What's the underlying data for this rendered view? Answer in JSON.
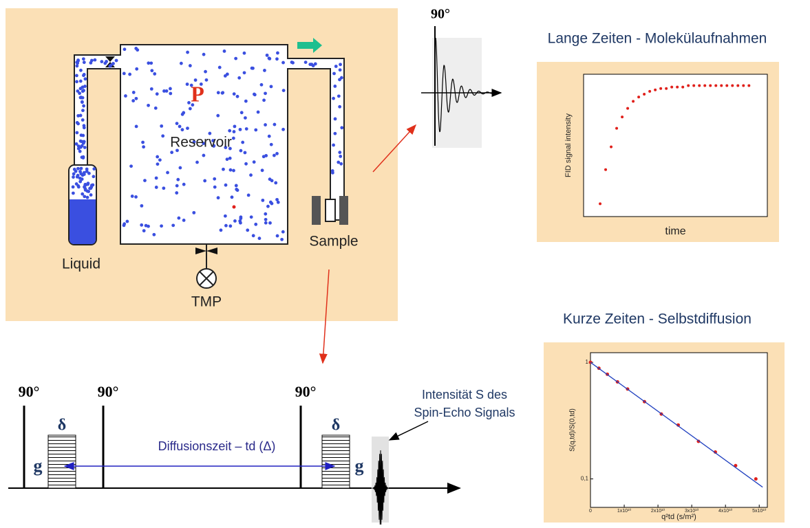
{
  "diagram": {
    "apparatus": {
      "pressure": "P",
      "reservoir": "Reservoir",
      "liquid": "Liquid",
      "sample": "Sample",
      "pump": "TMP"
    },
    "fid_pulse": "90°",
    "titles": {
      "long": "Lange Zeiten - Molekülaufnahmen",
      "short": "Kurze Zeiten - Selbstdiffusion"
    },
    "sequence": {
      "pulses": [
        "90°",
        "90°",
        "90°"
      ],
      "gradient_width": [
        "δ",
        "δ"
      ],
      "gradient": [
        "g",
        "g"
      ],
      "diffusion_time": "Diffusionszeit – td (Δ)",
      "echo": [
        "Intensität S des",
        "Spin-Echo Signals"
      ]
    }
  },
  "chart_data": [
    {
      "type": "scatter",
      "xlabel": "time",
      "ylabel": "FID signal intensity",
      "color": "#e0201b",
      "xlim": [
        0,
        100
      ],
      "ylim": [
        0,
        100
      ],
      "x": [
        9,
        12,
        15,
        18,
        21,
        24,
        27,
        30,
        33,
        36,
        39,
        42,
        45,
        48,
        51,
        54,
        57,
        60,
        63,
        66,
        69,
        72,
        75,
        78,
        81,
        84,
        87,
        90
      ],
      "values": [
        9,
        33,
        49,
        62,
        70,
        76,
        81,
        84,
        86,
        88,
        89,
        90,
        90,
        91,
        91,
        91,
        92,
        92,
        92,
        92,
        92,
        92,
        92,
        92,
        92,
        92,
        92,
        92
      ]
    },
    {
      "type": "scatter",
      "log_y": true,
      "xlabel": "q²td (s/m²)",
      "ylabel": "S(q,td)/S(0,td)",
      "xlim": [
        0,
        52400000000
      ],
      "ylim": [
        0.057,
        1.21
      ],
      "xticks": [
        0,
        {
          "value": 10000000000,
          "label": "1x10¹⁰"
        },
        {
          "value": 20000000000,
          "label": "2x10¹⁰"
        },
        {
          "value": 30000000000,
          "label": "3x10¹⁰"
        },
        {
          "value": 40000000000,
          "label": "4x10¹⁰"
        },
        {
          "value": 50000000000,
          "label": "5x10¹⁰"
        }
      ],
      "yticks": [
        {
          "value": 0.1,
          "label": "0,1"
        },
        1
      ],
      "series": [
        {
          "color": "#e0201b",
          "x": [
            0,
            2500000000,
            5000000000,
            8000000000,
            11000000000,
            16000000000,
            21000000000,
            26000000000,
            32000000000,
            37000000000,
            43000000000,
            49000000000
          ],
          "values": [
            1.0,
            0.89,
            0.79,
            0.68,
            0.59,
            0.46,
            0.36,
            0.29,
            0.21,
            0.17,
            0.13,
            0.1
          ]
        },
        {
          "type": "line",
          "color": "#1f3fbf",
          "x": [
            0,
            51000000000
          ],
          "values": [
            1,
            0.085
          ]
        }
      ]
    }
  ]
}
